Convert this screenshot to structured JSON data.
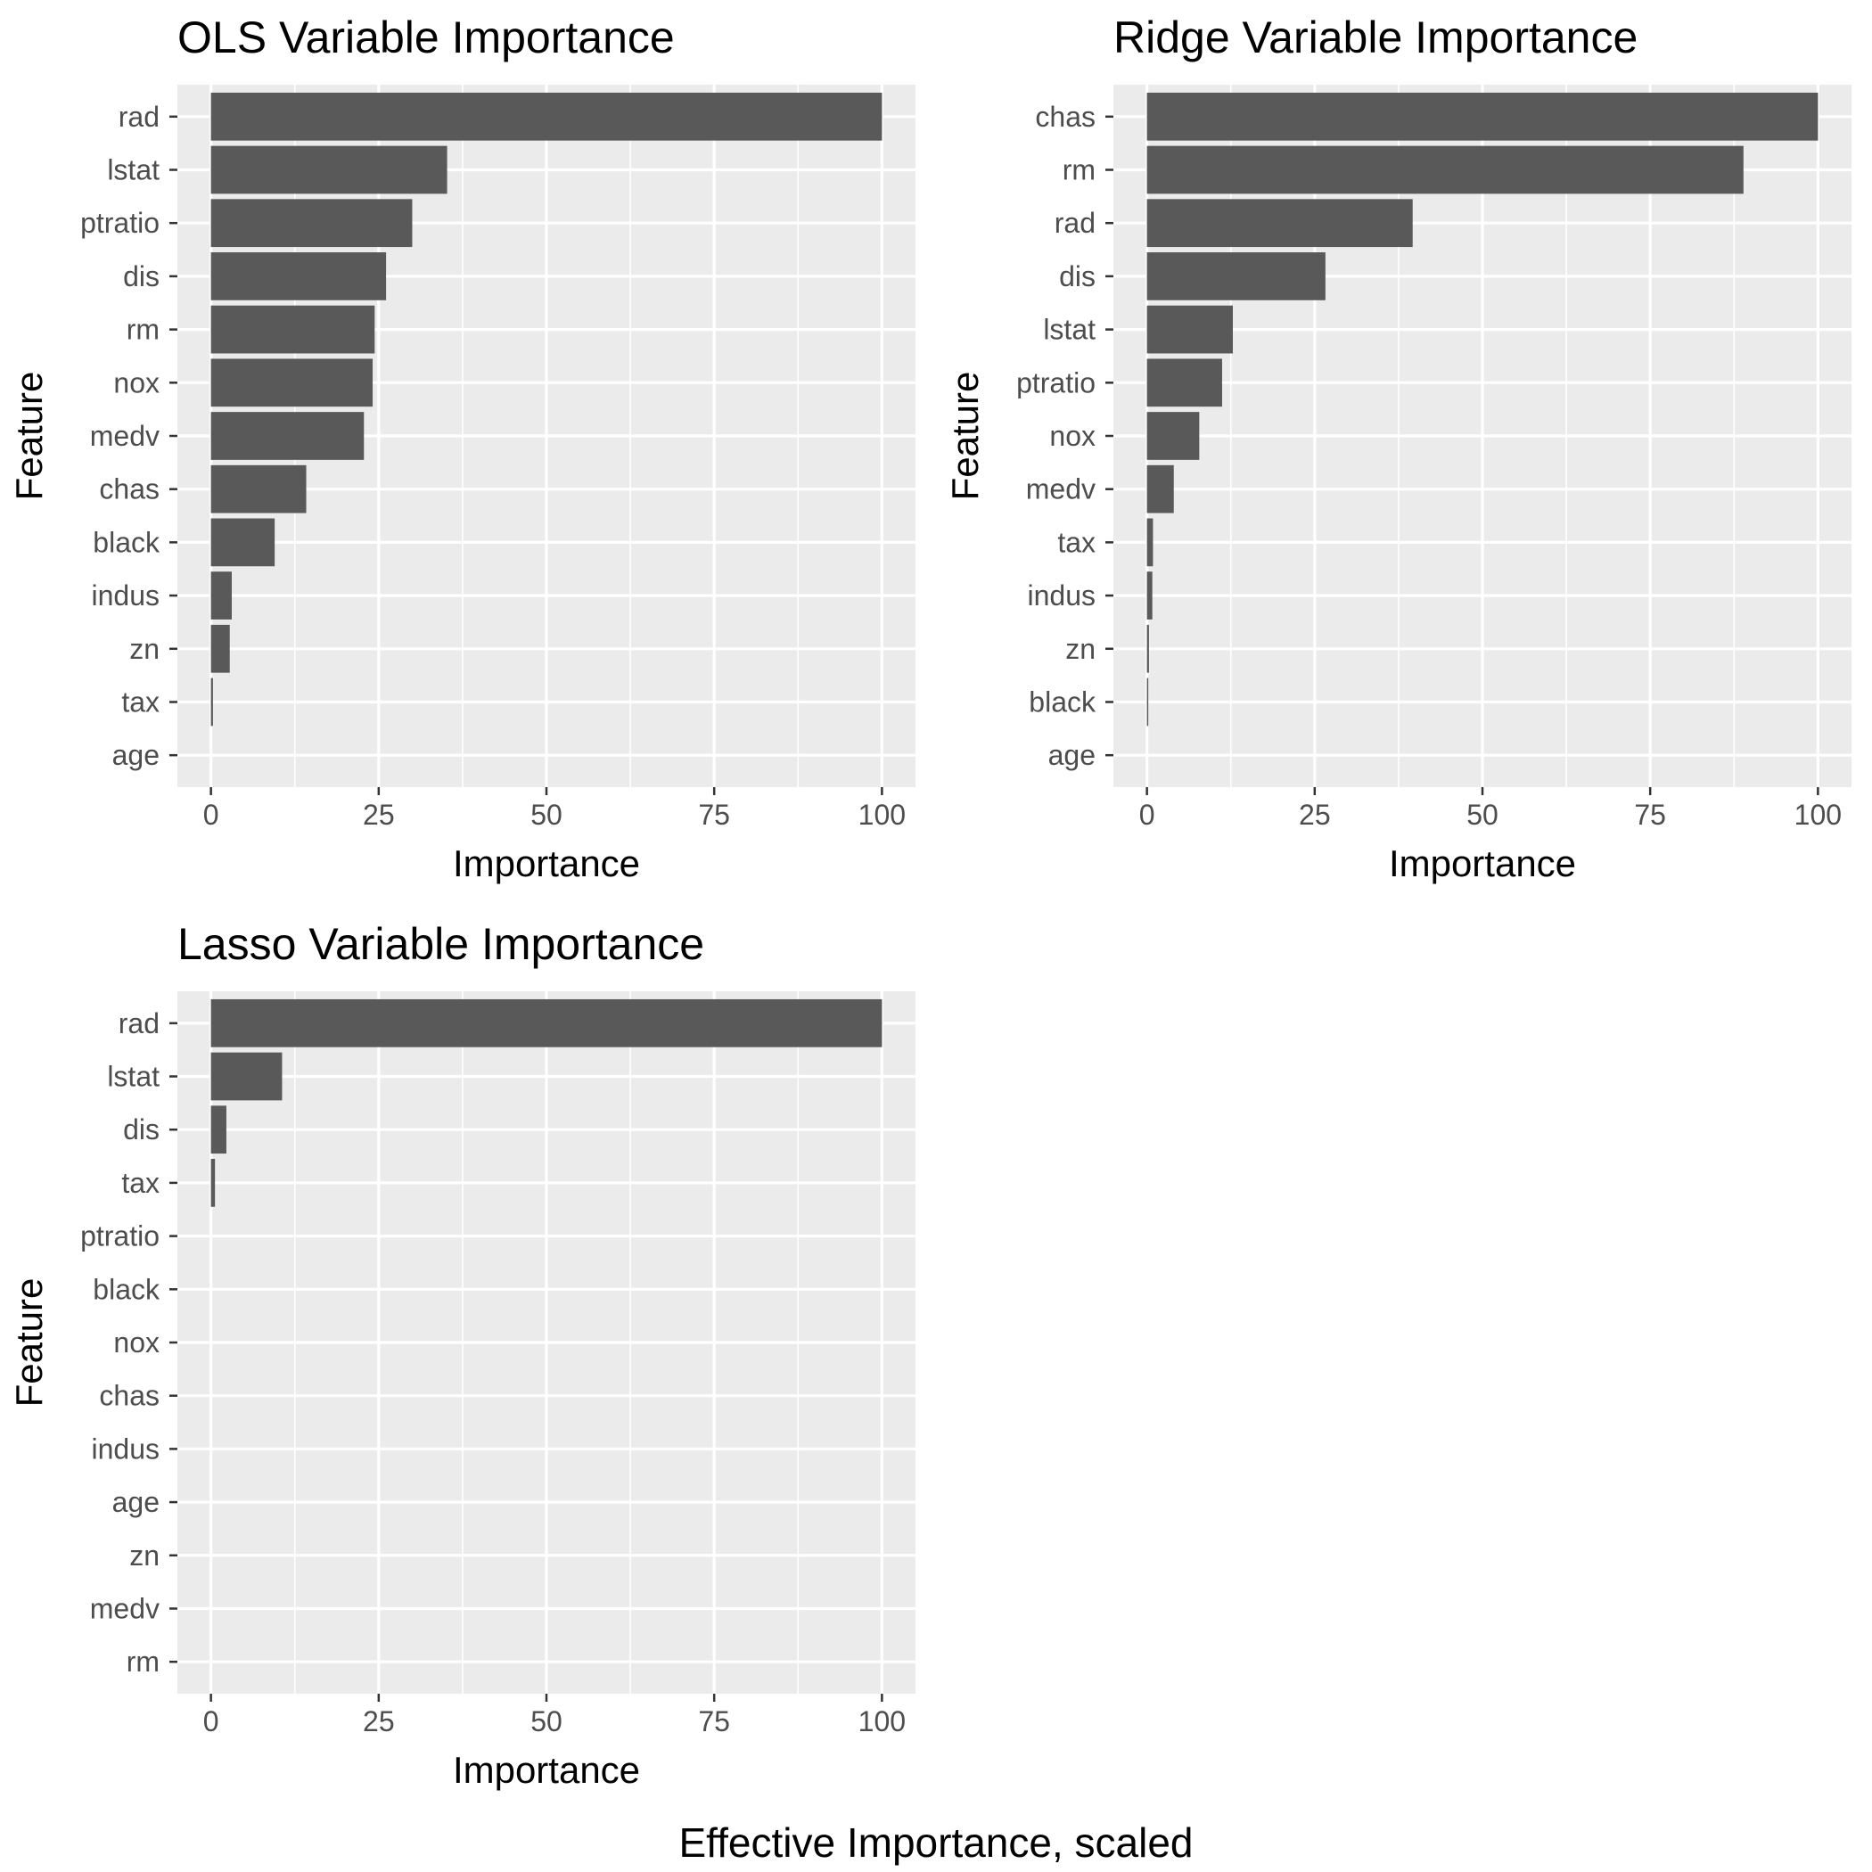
{
  "caption": "Effective Importance, scaled",
  "chart_data": [
    {
      "type": "bar",
      "orientation": "horizontal",
      "title": "OLS Variable Importance",
      "xlabel": "Importance",
      "ylabel": "Feature",
      "xlim": [
        0,
        100
      ],
      "xticks": [
        "0",
        "25",
        "50",
        "75",
        "100"
      ],
      "grid": true,
      "categories": [
        "rad",
        "lstat",
        "ptratio",
        "dis",
        "rm",
        "nox",
        "medv",
        "chas",
        "black",
        "indus",
        "zn",
        "tax",
        "age"
      ],
      "values": [
        100,
        35.2,
        30,
        26.1,
        24.4,
        24.1,
        22.8,
        14.2,
        9.5,
        3.1,
        2.8,
        0.3,
        0
      ]
    },
    {
      "type": "bar",
      "orientation": "horizontal",
      "title": "Ridge Variable Importance",
      "xlabel": "Importance",
      "ylabel": "Feature",
      "xlim": [
        0,
        100
      ],
      "xticks": [
        "0",
        "25",
        "50",
        "75",
        "100"
      ],
      "grid": true,
      "categories": [
        "chas",
        "rm",
        "rad",
        "dis",
        "lstat",
        "ptratio",
        "nox",
        "medv",
        "tax",
        "indus",
        "zn",
        "black",
        "age"
      ],
      "values": [
        100,
        88.9,
        39.6,
        26.6,
        12.8,
        11.2,
        7.8,
        4.0,
        0.9,
        0.8,
        0.3,
        0.2,
        0
      ]
    },
    {
      "type": "bar",
      "orientation": "horizontal",
      "title": "Lasso Variable Importance",
      "xlabel": "Importance",
      "ylabel": "Feature",
      "xlim": [
        0,
        100
      ],
      "xticks": [
        "0",
        "25",
        "50",
        "75",
        "100"
      ],
      "grid": true,
      "categories": [
        "rad",
        "lstat",
        "dis",
        "tax",
        "ptratio",
        "black",
        "nox",
        "chas",
        "indus",
        "age",
        "zn",
        "medv",
        "rm"
      ],
      "values": [
        100,
        10.6,
        2.3,
        0.6,
        0,
        0,
        0,
        0,
        0,
        0,
        0,
        0,
        0
      ]
    }
  ]
}
